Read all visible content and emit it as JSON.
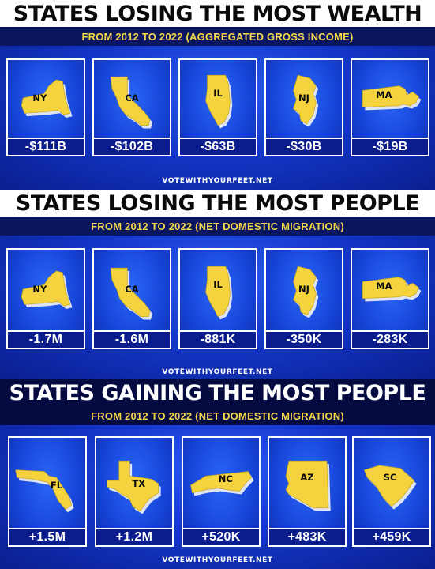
{
  "colors": {
    "shape_fill": "#f5d33f",
    "shape_shadow": "#e9ecf3",
    "title_dark": "#0a0a0a",
    "title_light": "#ffffff",
    "subtitle": "#f3d64a"
  },
  "panels": [
    {
      "title": "STATES LOSING THE MOST WEALTH",
      "subtitle": "FROM 2012 TO 2022 (AGGREGATED GROSS INCOME)",
      "footer": "VOTEWITHYOURFEET.NET",
      "cards": [
        {
          "abbr": "NY",
          "value": "-$111B",
          "icon": "new-york-map-icon"
        },
        {
          "abbr": "CA",
          "value": "-$102B",
          "icon": "california-map-icon"
        },
        {
          "abbr": "IL",
          "value": "-$63B",
          "icon": "illinois-map-icon"
        },
        {
          "abbr": "NJ",
          "value": "-$30B",
          "icon": "new-jersey-map-icon"
        },
        {
          "abbr": "MA",
          "value": "-$19B",
          "icon": "massachusetts-map-icon"
        }
      ]
    },
    {
      "title": "STATES LOSING THE MOST PEOPLE",
      "subtitle": "FROM 2012 TO 2022 (NET DOMESTIC MIGRATION)",
      "footer": "VOTEWITHYOURFEET.NET",
      "cards": [
        {
          "abbr": "NY",
          "value": "-1.7M",
          "icon": "new-york-map-icon"
        },
        {
          "abbr": "CA",
          "value": "-1.6M",
          "icon": "california-map-icon"
        },
        {
          "abbr": "IL",
          "value": "-881K",
          "icon": "illinois-map-icon"
        },
        {
          "abbr": "NJ",
          "value": "-350K",
          "icon": "new-jersey-map-icon"
        },
        {
          "abbr": "MA",
          "value": "-283K",
          "icon": "massachusetts-map-icon"
        }
      ]
    },
    {
      "title": "STATES GAINING THE MOST PEOPLE",
      "subtitle": "FROM 2012 TO 2022 (NET DOMESTIC MIGRATION)",
      "footer": "VOTEWITHYOURFEET.NET",
      "cards": [
        {
          "abbr": "FL",
          "value": "+1.5M",
          "icon": "florida-map-icon"
        },
        {
          "abbr": "TX",
          "value": "+1.2M",
          "icon": "texas-map-icon"
        },
        {
          "abbr": "NC",
          "value": "+520K",
          "icon": "north-carolina-map-icon"
        },
        {
          "abbr": "AZ",
          "value": "+483K",
          "icon": "arizona-map-icon"
        },
        {
          "abbr": "SC",
          "value": "+459K",
          "icon": "south-carolina-map-icon"
        }
      ]
    }
  ]
}
